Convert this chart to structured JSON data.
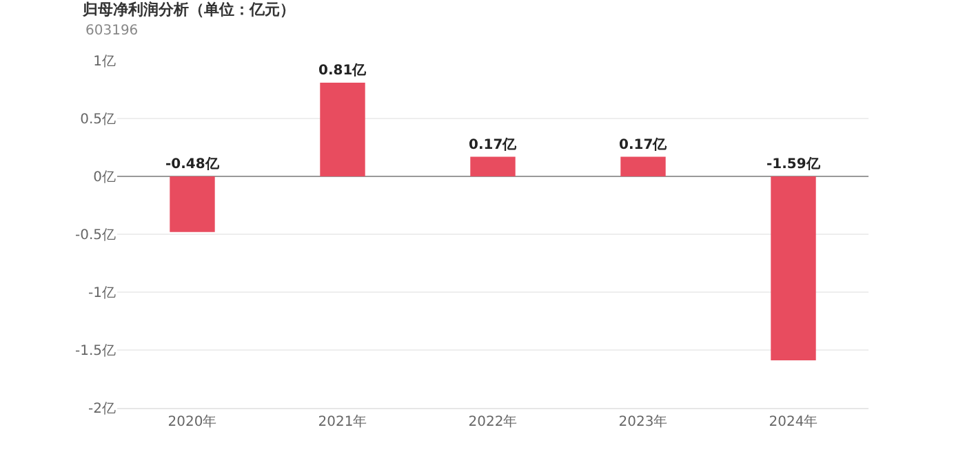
{
  "chart_data": {
    "type": "bar",
    "title": "归母净利润分析（单位：亿元）",
    "subtitle": "603196",
    "categories": [
      "2020年",
      "2021年",
      "2022年",
      "2023年",
      "2024年"
    ],
    "values": [
      -0.48,
      0.81,
      0.17,
      0.17,
      -1.59
    ],
    "value_labels": [
      "-0.48亿",
      "0.81亿",
      "0.17亿",
      "0.17亿",
      "-1.59亿"
    ],
    "color": "#e84c5f",
    "ylim": [
      -2,
      1
    ],
    "yticks": [
      {
        "value": 1,
        "label": "1亿"
      },
      {
        "value": 0.5,
        "label": "0.5亿"
      },
      {
        "value": 0,
        "label": "0亿"
      },
      {
        "value": -0.5,
        "label": "-0.5亿"
      },
      {
        "value": -1,
        "label": "-1亿"
      },
      {
        "value": -1.5,
        "label": "-1.5亿"
      },
      {
        "value": -2,
        "label": "-2亿"
      }
    ],
    "grid": "y"
  }
}
